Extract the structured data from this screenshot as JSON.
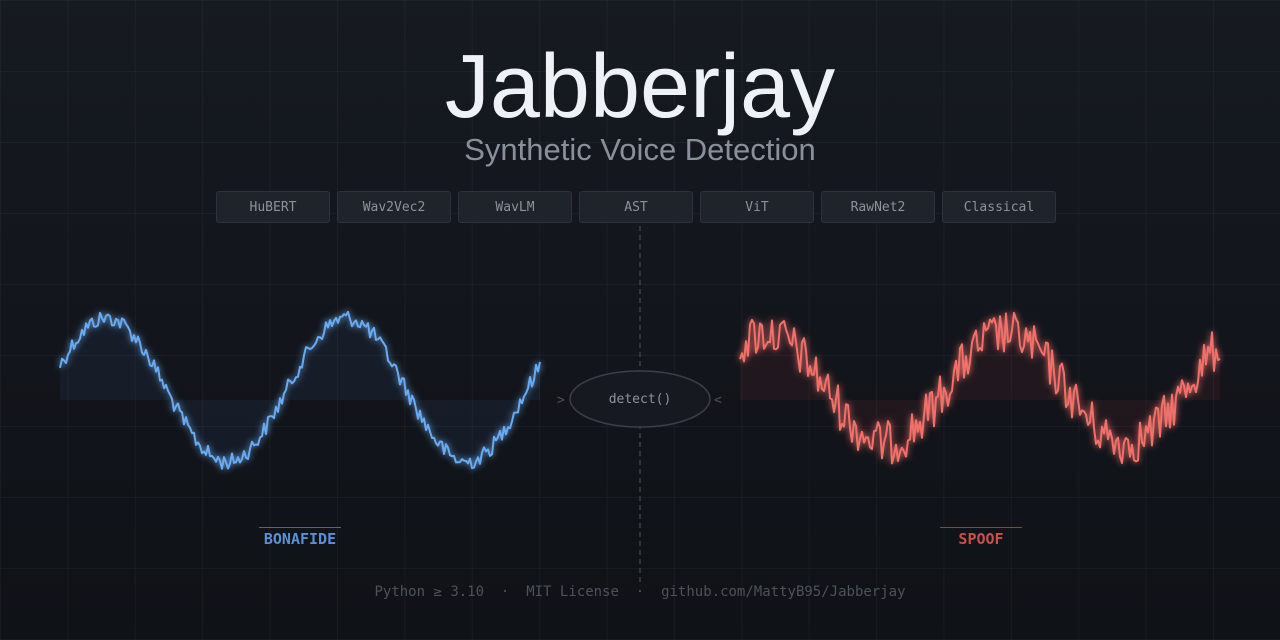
{
  "header": {
    "title": "Jabberjay",
    "subtitle": "Synthetic Voice Detection"
  },
  "models": [
    "HuBERT",
    "Wav2Vec2",
    "WavLM",
    "AST",
    "ViT",
    "RawNet2",
    "Classical"
  ],
  "center": {
    "call": "detect()"
  },
  "labels": {
    "left": "BONAFIDE",
    "right": "SPOOF"
  },
  "footer": {
    "python": "Python ≥ 3.10",
    "license": "MIT License",
    "repo": "github.com/MattyB95/Jabberjay",
    "separator": "·"
  },
  "colors": {
    "bonafide": "#6aaaf0",
    "spoof": "#f0706a",
    "grid": "#2a2f38"
  }
}
